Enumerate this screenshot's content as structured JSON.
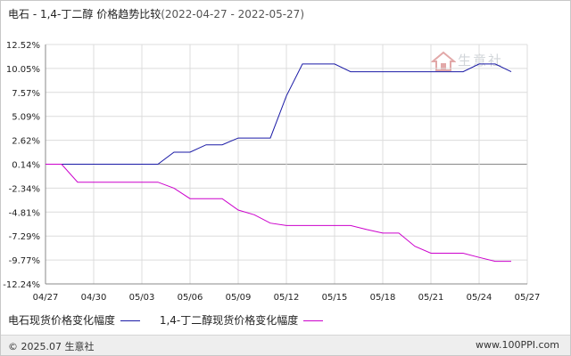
{
  "header": {
    "title": "电石 - 1,4-丁二醇 价格趋势比较",
    "date_range": "(2022-04-27 - 2022-05-27)"
  },
  "watermark": {
    "text": "生意社"
  },
  "footer": {
    "copyright": "© 2025.07 生意社",
    "site": "www.100PPI.com"
  },
  "chart_data": {
    "type": "line",
    "title": "电石 - 1,4-丁二醇 价格趋势比较",
    "ylabel": "",
    "xlabel": "",
    "ylim": [
      -12.24,
      12.52
    ],
    "y_ticks": [
      "12.52%",
      "10.05%",
      "7.57%",
      "5.09%",
      "2.62%",
      "0.14%",
      "-2.34%",
      "-4.81%",
      "-7.29%",
      "-9.77%",
      "-12.24%"
    ],
    "x_ticks": [
      "04/27",
      "04/30",
      "05/03",
      "05/06",
      "05/09",
      "05/12",
      "05/15",
      "05/18",
      "05/21",
      "05/24",
      "05/27"
    ],
    "grid": true,
    "legend_position": "bottom",
    "series": [
      {
        "name": "电石现货价格变化幅度",
        "color": "#1a1aa6",
        "points": [
          [
            0,
            0.14
          ],
          [
            1,
            0.14
          ],
          [
            2,
            0.14
          ],
          [
            3,
            0.14
          ],
          [
            4,
            0.14
          ],
          [
            5,
            0.14
          ],
          [
            6,
            0.14
          ],
          [
            7,
            0.14
          ],
          [
            8,
            1.38
          ],
          [
            9,
            1.38
          ],
          [
            10,
            2.15
          ],
          [
            11,
            2.15
          ],
          [
            12,
            2.85
          ],
          [
            13,
            2.85
          ],
          [
            14,
            2.85
          ],
          [
            15,
            7.2
          ],
          [
            16,
            10.5
          ],
          [
            17,
            10.5
          ],
          [
            18,
            10.5
          ],
          [
            19,
            9.7
          ],
          [
            20,
            9.7
          ],
          [
            21,
            9.7
          ],
          [
            22,
            9.7
          ],
          [
            23,
            9.7
          ],
          [
            24,
            9.7
          ],
          [
            25,
            9.7
          ],
          [
            26,
            9.7
          ],
          [
            27,
            10.5
          ],
          [
            28,
            10.5
          ],
          [
            29,
            9.7
          ]
        ]
      },
      {
        "name": "1,4-丁二醇现货价格变化幅度",
        "color": "#cc00cc",
        "points": [
          [
            0,
            0.14
          ],
          [
            1,
            0.14
          ],
          [
            2,
            -1.72
          ],
          [
            3,
            -1.72
          ],
          [
            4,
            -1.72
          ],
          [
            5,
            -1.72
          ],
          [
            6,
            -1.72
          ],
          [
            7,
            -1.72
          ],
          [
            8,
            -2.34
          ],
          [
            9,
            -3.42
          ],
          [
            10,
            -3.42
          ],
          [
            11,
            -3.42
          ],
          [
            12,
            -4.6
          ],
          [
            13,
            -5.09
          ],
          [
            14,
            -5.95
          ],
          [
            15,
            -6.2
          ],
          [
            16,
            -6.2
          ],
          [
            17,
            -6.2
          ],
          [
            18,
            -6.2
          ],
          [
            19,
            -6.2
          ],
          [
            20,
            -6.62
          ],
          [
            21,
            -6.98
          ],
          [
            22,
            -6.98
          ],
          [
            23,
            -8.35
          ],
          [
            24,
            -9.06
          ],
          [
            25,
            -9.06
          ],
          [
            26,
            -9.06
          ],
          [
            27,
            -9.5
          ],
          [
            28,
            -9.9
          ],
          [
            29,
            -9.9
          ]
        ]
      }
    ]
  }
}
